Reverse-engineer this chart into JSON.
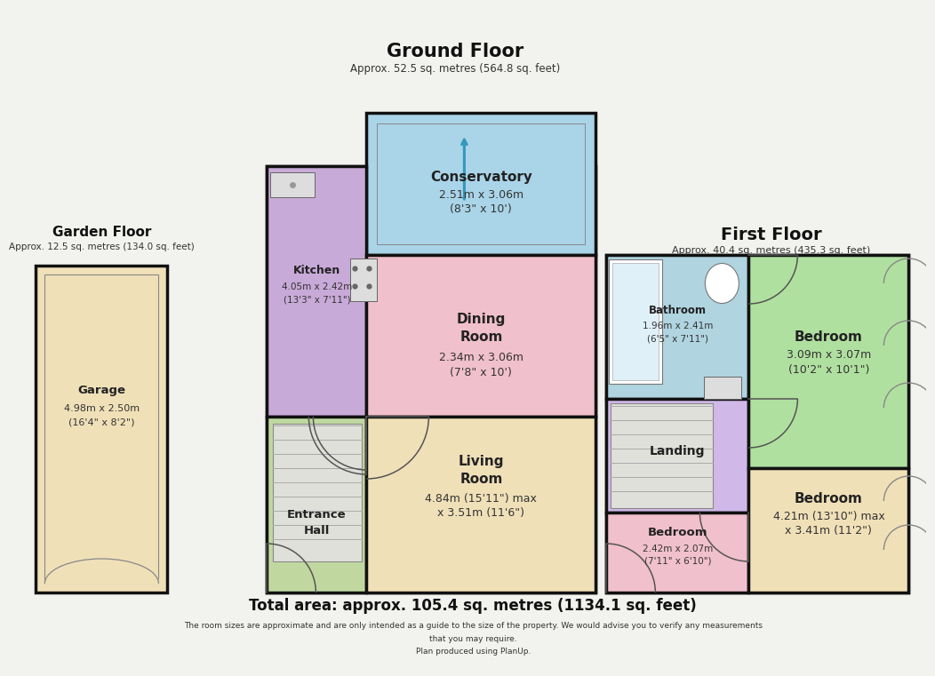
{
  "bg_color": "#f2f2ee",
  "wall_color": "#111111",
  "lw": 2.5,
  "title_ground": "Ground Floor",
  "subtitle_ground": "Approx. 52.5 sq. metres (564.8 sq. feet)",
  "title_first": "First Floor",
  "subtitle_first": "Approx. 40.4 sq. metres (435.3 sq. feet)",
  "title_garden": "Garden Floor",
  "subtitle_garden": "Approx. 12.5 sq. metres (134.0 sq. feet)",
  "footer1": "Total area: approx. 105.4 sq. metres (1134.1 sq. feet)",
  "footer2": "The room sizes are approximate and are only intended as a guide to the size of the property. We would advise you to verify any measurements",
  "footer3": "that you may require.",
  "footer4": "Plan produced using PlanUp.",
  "color_conservatory": "#aad4e8",
  "color_kitchen": "#c8aad8",
  "color_dining": "#f0c0cc",
  "color_living": "#f0e0b8",
  "color_entrance": "#c0d8a0",
  "color_garage": "#f0e0b8",
  "color_bathroom": "#b0d4e0",
  "color_landing": "#d0b8e8",
  "color_bed1": "#b0e0a0",
  "color_bed2": "#f0c0cc",
  "color_bed3": "#f0e0b8",
  "color_wall": "#111111",
  "color_stair": "#e0e0da",
  "color_fixture": "#dddddd"
}
